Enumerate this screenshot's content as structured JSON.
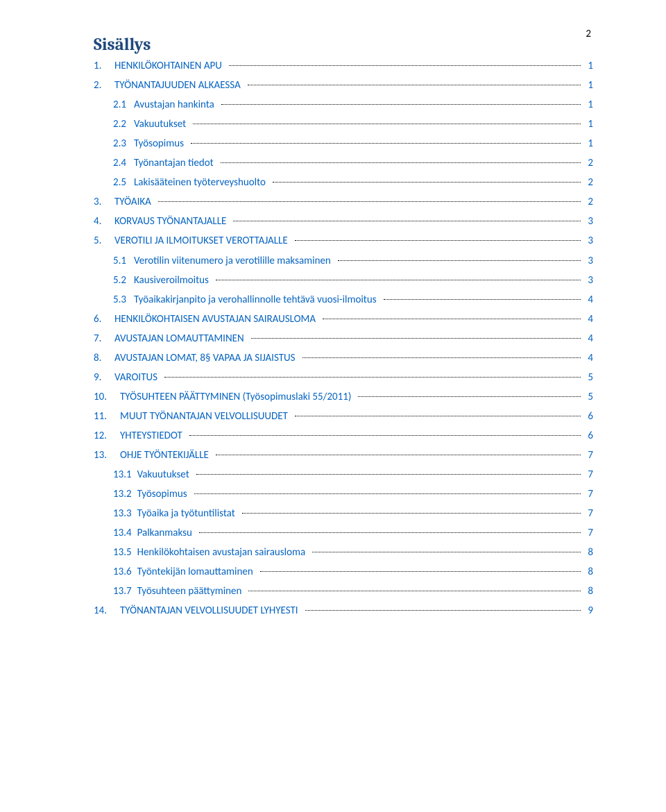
{
  "page_number": "2",
  "title": "Sisällys",
  "colors": {
    "title": "#1f497d",
    "link": "#0563c1",
    "text": "#000000",
    "background": "#ffffff"
  },
  "fonts": {
    "body": "Calibri",
    "title": "Cambria",
    "body_size_pt": 11,
    "title_size_pt": 18
  },
  "toc": [
    {
      "level": 0,
      "num": "1.",
      "label": "HENKILÖKOHTAINEN APU",
      "page": "1"
    },
    {
      "level": 0,
      "num": "2.",
      "label": "TYÖNANTAJUUDEN ALKAESSA",
      "page": "1"
    },
    {
      "level": 1,
      "num": "2.1",
      "label": "Avustajan hankinta",
      "page": "1"
    },
    {
      "level": 1,
      "num": "2.2",
      "label": "Vakuutukset",
      "page": "1"
    },
    {
      "level": 1,
      "num": "2.3",
      "label": "Työsopimus",
      "page": "1"
    },
    {
      "level": 1,
      "num": "2.4",
      "label": "Työnantajan tiedot",
      "page": "2"
    },
    {
      "level": 1,
      "num": "2.5",
      "label": "Lakisääteinen työterveyshuolto",
      "page": "2"
    },
    {
      "level": 0,
      "num": "3.",
      "label": "TYÖAIKA",
      "page": "2"
    },
    {
      "level": 0,
      "num": "4.",
      "label": "KORVAUS TYÖNANTAJALLE",
      "page": "3"
    },
    {
      "level": 0,
      "num": "5.",
      "label": "VEROTILI JA ILMOITUKSET VEROTTAJALLE",
      "page": "3"
    },
    {
      "level": 1,
      "num": "5.1",
      "label": "Verotilin viitenumero ja verotilille maksaminen",
      "page": "3"
    },
    {
      "level": 1,
      "num": "5.2",
      "label": "Kausiveroilmoitus",
      "page": "3"
    },
    {
      "level": 1,
      "num": "5.3",
      "label": "Työaikakirjanpito ja verohallinnolle tehtävä vuosi-ilmoitus",
      "page": "4"
    },
    {
      "level": 0,
      "num": "6.",
      "label": "HENKILÖKOHTAISEN AVUSTAJAN SAIRAUSLOMA",
      "page": "4"
    },
    {
      "level": 0,
      "num": "7.",
      "label": "AVUSTAJAN LOMAUTTAMINEN",
      "page": "4"
    },
    {
      "level": 0,
      "num": "8.",
      "label": "AVUSTAJAN LOMAT, 8§ VAPAA JA SIJAISTUS",
      "page": "4"
    },
    {
      "level": 0,
      "num": "9.",
      "label": "VAROITUS",
      "page": "5"
    },
    {
      "level": 0,
      "num": "10.",
      "label": "TYÖSUHTEEN PÄÄTTYMINEN (Työsopimuslaki 55/2011)",
      "page": "5",
      "wide": true
    },
    {
      "level": 0,
      "num": "11.",
      "label": "MUUT TYÖNANTAJAN VELVOLLISUUDET",
      "page": "6",
      "wide": true
    },
    {
      "level": 0,
      "num": "12.",
      "label": "YHTEYSTIEDOT",
      "page": "6",
      "wide": true
    },
    {
      "level": 0,
      "num": "13.",
      "label": "OHJE TYÖNTEKIJÄLLE",
      "page": "7",
      "wide": true
    },
    {
      "level": 1,
      "num": "13.1",
      "label": "Vakuutukset",
      "page": "7"
    },
    {
      "level": 1,
      "num": "13.2",
      "label": "Työsopimus",
      "page": "7"
    },
    {
      "level": 1,
      "num": "13.3",
      "label": "Työaika ja työtuntilistat",
      "page": "7"
    },
    {
      "level": 1,
      "num": "13.4",
      "label": "Palkanmaksu",
      "page": "7"
    },
    {
      "level": 1,
      "num": "13.5",
      "label": "Henkilökohtaisen avustajan sairausloma",
      "page": "8"
    },
    {
      "level": 1,
      "num": "13.6",
      "label": "Työntekijän lomauttaminen",
      "page": "8"
    },
    {
      "level": 1,
      "num": "13.7",
      "label": "Työsuhteen päättyminen",
      "page": "8"
    },
    {
      "level": 0,
      "num": "14.",
      "label": "TYÖNANTAJAN VELVOLLISUUDET LYHYESTI",
      "page": "9",
      "wide": true
    }
  ]
}
